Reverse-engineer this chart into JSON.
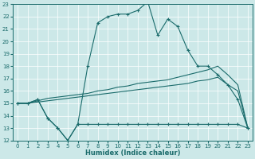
{
  "xlabel": "Humidex (Indice chaleur)",
  "bg_color": "#cce8e8",
  "line_color": "#1a6b6b",
  "xlim": [
    -0.5,
    23.5
  ],
  "ylim": [
    12,
    23
  ],
  "xticks": [
    0,
    1,
    2,
    3,
    4,
    5,
    6,
    7,
    8,
    9,
    10,
    11,
    12,
    13,
    14,
    15,
    16,
    17,
    18,
    19,
    20,
    21,
    22,
    23
  ],
  "yticks": [
    12,
    13,
    14,
    15,
    16,
    17,
    18,
    19,
    20,
    21,
    22,
    23
  ],
  "line1_x": [
    0,
    1,
    2,
    3,
    4,
    5,
    6,
    7,
    8,
    9,
    10,
    11,
    12,
    13,
    14,
    15,
    16,
    17,
    18,
    19,
    20,
    21,
    22,
    23
  ],
  "line1_y": [
    15.0,
    15.0,
    15.3,
    13.8,
    13.0,
    12.0,
    13.3,
    18.0,
    21.5,
    22.0,
    22.2,
    22.2,
    22.5,
    23.2,
    20.5,
    21.8,
    21.2,
    19.3,
    18.0,
    18.0,
    17.3,
    16.5,
    15.3,
    13.0
  ],
  "line2_x": [
    0,
    1,
    2,
    3,
    4,
    5,
    6,
    7,
    8,
    9,
    10,
    11,
    12,
    13,
    14,
    15,
    16,
    17,
    18,
    19,
    20,
    21,
    22,
    23
  ],
  "line2_y": [
    15.0,
    15.0,
    15.3,
    13.8,
    13.0,
    12.0,
    13.3,
    13.3,
    13.3,
    13.3,
    13.3,
    13.3,
    13.3,
    13.3,
    13.3,
    13.3,
    13.3,
    13.3,
    13.3,
    13.3,
    13.3,
    13.3,
    13.3,
    13.0
  ],
  "line3_x": [
    0,
    1,
    2,
    3,
    4,
    5,
    6,
    7,
    8,
    9,
    10,
    11,
    12,
    13,
    14,
    15,
    16,
    17,
    18,
    19,
    20,
    21,
    22,
    23
  ],
  "line3_y": [
    15.0,
    15.0,
    15.2,
    15.4,
    15.5,
    15.6,
    15.7,
    15.8,
    16.0,
    16.1,
    16.3,
    16.4,
    16.6,
    16.7,
    16.8,
    16.9,
    17.1,
    17.3,
    17.5,
    17.7,
    18.0,
    17.3,
    16.5,
    13.0
  ],
  "line4_x": [
    0,
    1,
    2,
    3,
    4,
    5,
    6,
    7,
    8,
    9,
    10,
    11,
    12,
    13,
    14,
    15,
    16,
    17,
    18,
    19,
    20,
    21,
    22,
    23
  ],
  "line4_y": [
    15.0,
    15.0,
    15.1,
    15.2,
    15.3,
    15.4,
    15.5,
    15.6,
    15.7,
    15.8,
    15.9,
    16.0,
    16.1,
    16.2,
    16.3,
    16.4,
    16.5,
    16.6,
    16.8,
    16.9,
    17.1,
    16.5,
    16.0,
    13.0
  ]
}
